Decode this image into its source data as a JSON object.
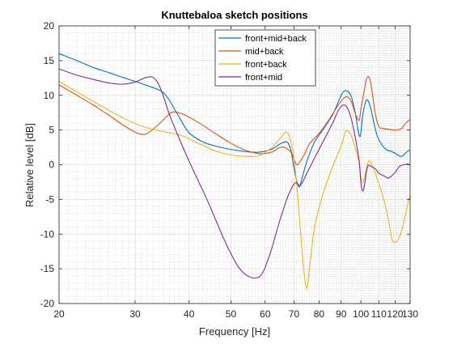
{
  "chart_data": {
    "type": "line",
    "title": "Knuttebaloa sketch positions",
    "xlabel": "Frequency [Hz]",
    "ylabel": "Relative level [dB]",
    "xscale": "log",
    "xlim": [
      20,
      130
    ],
    "ylim": [
      -20,
      20
    ],
    "grid": "on (major and minor)",
    "legend_position": "top-center",
    "x_ticks": [
      20,
      30,
      40,
      50,
      60,
      70,
      80,
      90,
      100,
      110,
      120,
      130
    ],
    "x_tick_labels": [
      "20",
      "30",
      "40",
      "50",
      "60",
      "70",
      "80",
      "90",
      "100",
      "110",
      "120",
      "130"
    ],
    "y_ticks": [
      -20,
      -15,
      -10,
      -5,
      0,
      5,
      10,
      15,
      20
    ],
    "y_tick_labels": [
      "-20",
      "-15",
      "-10",
      "-5",
      "0",
      "5",
      "10",
      "15",
      "20"
    ],
    "series": [
      {
        "name": "front+mid+back",
        "color": "#0072BD",
        "x": [
          20,
          22,
          24,
          26,
          28,
          30,
          32,
          34,
          35,
          36,
          38,
          40,
          43,
          46,
          50,
          54,
          58,
          62,
          65,
          67,
          68,
          69,
          70,
          71,
          72,
          73,
          75,
          78,
          82,
          86,
          89,
          91,
          93,
          95,
          97,
          99,
          100,
          101,
          103,
          105,
          107,
          109,
          112,
          115,
          118,
          121,
          124,
          126,
          128,
          130
        ],
        "y": [
          16,
          15,
          14,
          13.3,
          12.6,
          12,
          11.4,
          10.8,
          10.3,
          9.3,
          6.8,
          4.6,
          3.3,
          2.7,
          2.2,
          1.9,
          1.8,
          2.2,
          3.0,
          3.3,
          3.0,
          1.8,
          -0.5,
          -2.3,
          -3.2,
          -2.0,
          0.5,
          3.2,
          5.2,
          7.2,
          9.3,
          10.5,
          10.6,
          9.8,
          7.5,
          4.3,
          4.6,
          7.2,
          9.3,
          8.5,
          6.2,
          4.2,
          2.8,
          2.1,
          1.9,
          1.5,
          1.2,
          1.5,
          1.9,
          2.1
        ]
      },
      {
        "name": "mid+back",
        "color": "#D95319",
        "x": [
          20,
          22,
          24,
          26,
          28,
          30,
          31,
          32,
          34,
          36,
          37,
          39,
          42,
          46,
          50,
          54,
          58,
          62,
          65,
          67,
          69,
          70,
          71,
          72,
          74,
          76,
          80,
          84,
          88,
          91,
          93,
          95,
          97,
          99,
          100,
          102,
          103,
          104,
          105,
          106,
          107,
          108,
          110,
          113,
          116,
          120,
          124,
          127,
          130
        ],
        "y": [
          11.5,
          10,
          8.6,
          7.2,
          5.8,
          4.7,
          4.4,
          4.5,
          5.8,
          7.3,
          7.6,
          7.2,
          6.1,
          4.5,
          3.1,
          2.1,
          1.6,
          1.8,
          2.5,
          2.4,
          1.7,
          0.8,
          0.0,
          0.3,
          1.5,
          3.0,
          4.5,
          6.3,
          8.3,
          9.5,
          9.8,
          9.1,
          7.4,
          6.4,
          8.0,
          11.0,
          12.3,
          12.7,
          12.2,
          10.8,
          9.0,
          7.3,
          5.5,
          5.2,
          5.1,
          5.0,
          5.2,
          6.0,
          6.5
        ]
      },
      {
        "name": "front+back",
        "color": "#EDB120",
        "x": [
          20,
          22,
          25,
          28,
          31,
          34,
          38,
          42,
          46,
          50,
          54,
          58,
          62,
          64,
          66,
          67,
          68,
          69,
          70,
          71,
          72,
          73,
          74,
          75,
          76,
          78,
          81,
          84,
          87,
          90,
          92,
          93,
          95,
          97,
          99,
          100,
          101,
          102,
          103,
          104,
          105,
          107,
          109,
          112,
          115,
          117,
          118,
          120,
          123,
          126,
          128,
          130
        ],
        "y": [
          12,
          10.5,
          8.5,
          6.8,
          5.6,
          4.9,
          4.3,
          3.1,
          2.0,
          1.4,
          1.2,
          1.3,
          2.4,
          3.3,
          4.3,
          4.7,
          4.4,
          3.1,
          0.8,
          -2.8,
          -7.5,
          -12.0,
          -16.0,
          -17.8,
          -15.0,
          -9.3,
          -5.0,
          -2.0,
          0.5,
          2.7,
          4.6,
          4.9,
          4.2,
          2.4,
          0.4,
          -1.8,
          -2.6,
          -1.8,
          -0.5,
          0.4,
          0.5,
          -0.6,
          -2.0,
          -4.2,
          -7.0,
          -9.5,
          -10.7,
          -11.2,
          -10.3,
          -8.0,
          -6.0,
          -4.4
        ]
      },
      {
        "name": "front+mid",
        "color": "#7E2F8E",
        "x": [
          20,
          22,
          24,
          26,
          28,
          30,
          31,
          32,
          33,
          34,
          35,
          36,
          38,
          40,
          42,
          44,
          46,
          48,
          50,
          52,
          54,
          56,
          58,
          59,
          60,
          62,
          64,
          66,
          68,
          70,
          71,
          72,
          73,
          75,
          78,
          82,
          86,
          89,
          91,
          93,
          95,
          97,
          99,
          100,
          101,
          102,
          103,
          104,
          106,
          108,
          110,
          113,
          116,
          120,
          123,
          126,
          128,
          130
        ],
        "y": [
          13.8,
          12.9,
          12.3,
          11.8,
          11.6,
          11.9,
          12.3,
          12.6,
          12.6,
          11.6,
          9.6,
          7.3,
          3.7,
          0.5,
          -2.3,
          -5.0,
          -7.8,
          -10.5,
          -12.8,
          -14.7,
          -15.8,
          -16.3,
          -16.2,
          -15.7,
          -14.8,
          -12.3,
          -9.3,
          -6.6,
          -4.3,
          -2.8,
          -2.6,
          -3.0,
          -2.7,
          -1.2,
          0.9,
          3.5,
          6.0,
          8.0,
          8.6,
          8.2,
          6.6,
          4.0,
          0.7,
          -2.6,
          -3.8,
          -2.8,
          -1.0,
          -0.1,
          -0.3,
          -0.6,
          -1.2,
          -1.6,
          -1.9,
          -1.1,
          -0.2,
          0.0,
          0.1,
          0.0
        ]
      }
    ]
  }
}
